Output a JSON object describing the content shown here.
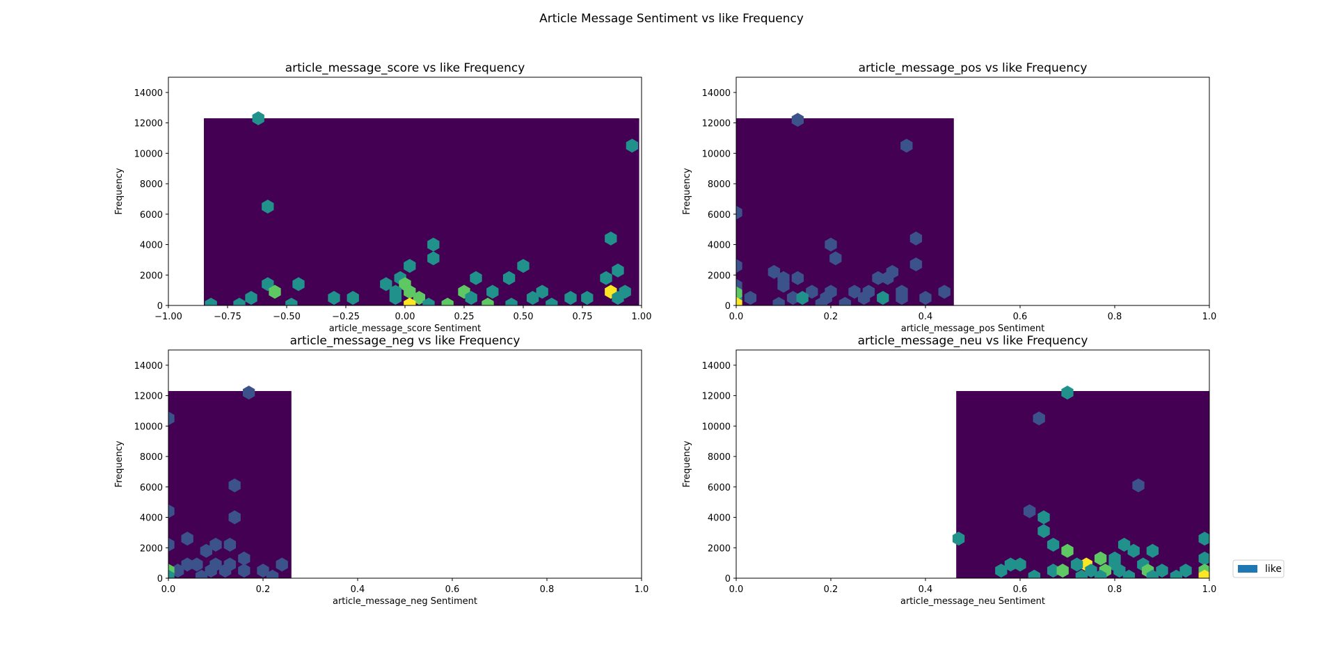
{
  "figure": {
    "suptitle": "Article Message Sentiment vs like Frequency",
    "legend": {
      "label": "like",
      "color": "#1f77b4",
      "placement": "center-right"
    }
  },
  "colormap": [
    "#440154",
    "#3b528b",
    "#21918c",
    "#5ec962",
    "#fde725"
  ],
  "chart_data": [
    {
      "type": "hexbin",
      "title": "article_message_score vs like Frequency",
      "xlabel": "article_message_score Sentiment",
      "ylabel": "Frequency",
      "xlim": [
        -1.0,
        1.0
      ],
      "ylim": [
        0,
        15000
      ],
      "xticks": [
        "−1.00",
        "−0.75",
        "−0.50",
        "−0.25",
        "0.00",
        "0.25",
        "0.50",
        "0.75",
        "1.00"
      ],
      "xtick_values": [
        -1.0,
        -0.75,
        -0.5,
        -0.25,
        0.0,
        0.25,
        0.5,
        0.75,
        1.0
      ],
      "yticks": [
        0,
        2000,
        4000,
        6000,
        8000,
        10000,
        12000,
        14000
      ],
      "data_extent": {
        "x": [
          -0.85,
          0.99
        ],
        "y": [
          0,
          12300
        ]
      },
      "hot_bins": [
        {
          "x": -0.62,
          "y": 12300,
          "level": 2
        },
        {
          "x": -0.58,
          "y": 6500,
          "level": 2
        },
        {
          "x": 0.12,
          "y": 4000,
          "level": 2
        },
        {
          "x": 0.12,
          "y": 3100,
          "level": 2
        },
        {
          "x": 0.87,
          "y": 4400,
          "level": 2
        },
        {
          "x": 0.96,
          "y": 10500,
          "level": 2
        },
        {
          "x": 0.9,
          "y": 2300,
          "level": 2
        },
        {
          "x": 0.5,
          "y": 2600,
          "level": 2
        },
        {
          "x": 0.3,
          "y": 1800,
          "level": 2
        },
        {
          "x": 0.44,
          "y": 1800,
          "level": 2
        },
        {
          "x": 0.02,
          "y": 2600,
          "level": 2
        },
        {
          "x": -0.58,
          "y": 1400,
          "level": 2
        },
        {
          "x": -0.45,
          "y": 1400,
          "level": 2
        },
        {
          "x": -0.55,
          "y": 900,
          "level": 3
        },
        {
          "x": -0.65,
          "y": 500,
          "level": 2
        },
        {
          "x": -0.3,
          "y": 500,
          "level": 2
        },
        {
          "x": -0.22,
          "y": 500,
          "level": 2
        },
        {
          "x": -0.08,
          "y": 1400,
          "level": 2
        },
        {
          "x": -0.02,
          "y": 1800,
          "level": 2
        },
        {
          "x": 0.0,
          "y": 1400,
          "level": 3
        },
        {
          "x": -0.04,
          "y": 900,
          "level": 2
        },
        {
          "x": 0.02,
          "y": 900,
          "level": 3
        },
        {
          "x": 0.06,
          "y": 500,
          "level": 3
        },
        {
          "x": -0.04,
          "y": 500,
          "level": 2
        },
        {
          "x": 0.25,
          "y": 900,
          "level": 3
        },
        {
          "x": 0.37,
          "y": 900,
          "level": 2
        },
        {
          "x": 0.58,
          "y": 900,
          "level": 2
        },
        {
          "x": 0.85,
          "y": 1800,
          "level": 2
        },
        {
          "x": 0.87,
          "y": 900,
          "level": 4
        },
        {
          "x": 0.93,
          "y": 900,
          "level": 2
        },
        {
          "x": 0.9,
          "y": 500,
          "level": 2
        },
        {
          "x": 0.7,
          "y": 500,
          "level": 2
        },
        {
          "x": 0.77,
          "y": 500,
          "level": 2
        },
        {
          "x": 0.54,
          "y": 500,
          "level": 2
        },
        {
          "x": 0.28,
          "y": 500,
          "level": 2
        },
        {
          "x": 0.02,
          "y": 50,
          "level": 4
        },
        {
          "x": 0.1,
          "y": 50,
          "level": 2
        },
        {
          "x": 0.18,
          "y": 50,
          "level": 3
        },
        {
          "x": 0.35,
          "y": 50,
          "level": 3
        },
        {
          "x": 0.45,
          "y": 50,
          "level": 2
        },
        {
          "x": -0.82,
          "y": 50,
          "level": 2
        },
        {
          "x": -0.48,
          "y": 50,
          "level": 2
        },
        {
          "x": -0.7,
          "y": 50,
          "level": 2
        },
        {
          "x": 0.62,
          "y": 50,
          "level": 2
        }
      ]
    },
    {
      "type": "hexbin",
      "title": "article_message_pos vs like Frequency",
      "xlabel": "article_message_pos Sentiment",
      "ylabel": "Frequency",
      "xlim": [
        0.0,
        1.0
      ],
      "ylim": [
        0,
        15000
      ],
      "xticks": [
        "0.0",
        "0.2",
        "0.4",
        "0.6",
        "0.8",
        "1.0"
      ],
      "xtick_values": [
        0.0,
        0.2,
        0.4,
        0.6,
        0.8,
        1.0
      ],
      "yticks": [
        0,
        2000,
        4000,
        6000,
        8000,
        10000,
        12000,
        14000
      ],
      "data_extent": {
        "x": [
          0.0,
          0.46
        ],
        "y": [
          0,
          12300
        ]
      },
      "hot_bins": [
        {
          "x": 0.13,
          "y": 12200,
          "level": 1
        },
        {
          "x": 0.36,
          "y": 10500,
          "level": 1
        },
        {
          "x": 0.0,
          "y": 6100,
          "level": 1
        },
        {
          "x": 0.2,
          "y": 4000,
          "level": 1
        },
        {
          "x": 0.38,
          "y": 4400,
          "level": 1
        },
        {
          "x": 0.21,
          "y": 3100,
          "level": 1
        },
        {
          "x": 0.38,
          "y": 2700,
          "level": 1
        },
        {
          "x": 0.33,
          "y": 2200,
          "level": 1
        },
        {
          "x": 0.0,
          "y": 2600,
          "level": 1
        },
        {
          "x": 0.08,
          "y": 2200,
          "level": 1
        },
        {
          "x": 0.1,
          "y": 1800,
          "level": 1
        },
        {
          "x": 0.13,
          "y": 1800,
          "level": 1
        },
        {
          "x": 0.3,
          "y": 1800,
          "level": 1
        },
        {
          "x": 0.32,
          "y": 1800,
          "level": 1
        },
        {
          "x": 0.0,
          "y": 1300,
          "level": 1
        },
        {
          "x": 0.1,
          "y": 1300,
          "level": 1
        },
        {
          "x": 0.44,
          "y": 900,
          "level": 1
        },
        {
          "x": 0.16,
          "y": 900,
          "level": 1
        },
        {
          "x": 0.2,
          "y": 900,
          "level": 1
        },
        {
          "x": 0.25,
          "y": 900,
          "level": 1
        },
        {
          "x": 0.28,
          "y": 900,
          "level": 1
        },
        {
          "x": 0.35,
          "y": 900,
          "level": 1
        },
        {
          "x": 0.03,
          "y": 500,
          "level": 1
        },
        {
          "x": 0.12,
          "y": 500,
          "level": 1
        },
        {
          "x": 0.14,
          "y": 500,
          "level": 2
        },
        {
          "x": 0.19,
          "y": 500,
          "level": 1
        },
        {
          "x": 0.27,
          "y": 500,
          "level": 1
        },
        {
          "x": 0.31,
          "y": 500,
          "level": 2
        },
        {
          "x": 0.35,
          "y": 500,
          "level": 1
        },
        {
          "x": 0.4,
          "y": 500,
          "level": 1
        },
        {
          "x": 0.0,
          "y": 500,
          "level": 2
        },
        {
          "x": 0.0,
          "y": 800,
          "level": 3
        },
        {
          "x": 0.0,
          "y": 100,
          "level": 4
        },
        {
          "x": 0.09,
          "y": 100,
          "level": 1
        },
        {
          "x": 0.18,
          "y": 100,
          "level": 1
        },
        {
          "x": 0.23,
          "y": 100,
          "level": 1
        }
      ]
    },
    {
      "type": "hexbin",
      "title": "article_message_neg vs like Frequency",
      "xlabel": "article_message_neg Sentiment",
      "ylabel": "Frequency",
      "xlim": [
        0.0,
        1.0
      ],
      "ylim": [
        0,
        15000
      ],
      "xticks": [
        "0.0",
        "0.2",
        "0.4",
        "0.6",
        "0.8",
        "1.0"
      ],
      "xtick_values": [
        0.0,
        0.2,
        0.4,
        0.6,
        0.8,
        1.0
      ],
      "yticks": [
        0,
        2000,
        4000,
        6000,
        8000,
        10000,
        12000,
        14000
      ],
      "data_extent": {
        "x": [
          0.0,
          0.26
        ],
        "y": [
          0,
          12300
        ]
      },
      "hot_bins": [
        {
          "x": 0.17,
          "y": 12200,
          "level": 1
        },
        {
          "x": 0.0,
          "y": 10500,
          "level": 1
        },
        {
          "x": 0.14,
          "y": 6100,
          "level": 1
        },
        {
          "x": 0.0,
          "y": 4400,
          "level": 1
        },
        {
          "x": 0.14,
          "y": 4000,
          "level": 1
        },
        {
          "x": 0.04,
          "y": 2600,
          "level": 1
        },
        {
          "x": 0.1,
          "y": 2200,
          "level": 1
        },
        {
          "x": 0.13,
          "y": 2200,
          "level": 1
        },
        {
          "x": 0.0,
          "y": 2200,
          "level": 1
        },
        {
          "x": 0.08,
          "y": 1800,
          "level": 1
        },
        {
          "x": 0.16,
          "y": 1300,
          "level": 1
        },
        {
          "x": 0.24,
          "y": 900,
          "level": 1
        },
        {
          "x": 0.04,
          "y": 900,
          "level": 1
        },
        {
          "x": 0.06,
          "y": 900,
          "level": 1
        },
        {
          "x": 0.1,
          "y": 900,
          "level": 1
        },
        {
          "x": 0.13,
          "y": 900,
          "level": 1
        },
        {
          "x": 0.02,
          "y": 500,
          "level": 1
        },
        {
          "x": 0.09,
          "y": 500,
          "level": 1
        },
        {
          "x": 0.12,
          "y": 500,
          "level": 1
        },
        {
          "x": 0.16,
          "y": 500,
          "level": 1
        },
        {
          "x": 0.2,
          "y": 500,
          "level": 1
        },
        {
          "x": 0.0,
          "y": 500,
          "level": 3
        },
        {
          "x": 0.0,
          "y": 100,
          "level": 2
        },
        {
          "x": 0.22,
          "y": 100,
          "level": 1
        },
        {
          "x": 0.07,
          "y": 100,
          "level": 1
        }
      ]
    },
    {
      "type": "hexbin",
      "title": "article_message_neu vs like Frequency",
      "xlabel": "article_message_neu Sentiment",
      "ylabel": "Frequency",
      "xlim": [
        0.0,
        1.0
      ],
      "ylim": [
        0,
        15000
      ],
      "xticks": [
        "0.0",
        "0.2",
        "0.4",
        "0.6",
        "0.8",
        "1.0"
      ],
      "xtick_values": [
        0.0,
        0.2,
        0.4,
        0.6,
        0.8,
        1.0
      ],
      "yticks": [
        0,
        2000,
        4000,
        6000,
        8000,
        10000,
        12000,
        14000
      ],
      "data_extent": {
        "x": [
          0.465,
          1.0
        ],
        "y": [
          0,
          12300
        ]
      },
      "hot_bins": [
        {
          "x": 0.7,
          "y": 12200,
          "level": 2
        },
        {
          "x": 0.64,
          "y": 10500,
          "level": 1
        },
        {
          "x": 0.85,
          "y": 6100,
          "level": 1
        },
        {
          "x": 0.62,
          "y": 4400,
          "level": 1
        },
        {
          "x": 0.65,
          "y": 4000,
          "level": 2
        },
        {
          "x": 0.65,
          "y": 3100,
          "level": 2
        },
        {
          "x": 0.47,
          "y": 2600,
          "level": 2
        },
        {
          "x": 0.99,
          "y": 2600,
          "level": 2
        },
        {
          "x": 0.67,
          "y": 2200,
          "level": 2
        },
        {
          "x": 0.82,
          "y": 2200,
          "level": 2
        },
        {
          "x": 0.7,
          "y": 1800,
          "level": 3
        },
        {
          "x": 0.84,
          "y": 1800,
          "level": 2
        },
        {
          "x": 0.88,
          "y": 1800,
          "level": 2
        },
        {
          "x": 0.77,
          "y": 1300,
          "level": 3
        },
        {
          "x": 0.8,
          "y": 1300,
          "level": 2
        },
        {
          "x": 0.99,
          "y": 1300,
          "level": 2
        },
        {
          "x": 0.74,
          "y": 900,
          "level": 4
        },
        {
          "x": 0.72,
          "y": 900,
          "level": 2
        },
        {
          "x": 0.8,
          "y": 900,
          "level": 2
        },
        {
          "x": 0.86,
          "y": 900,
          "level": 2
        },
        {
          "x": 0.58,
          "y": 900,
          "level": 2
        },
        {
          "x": 0.6,
          "y": 900,
          "level": 2
        },
        {
          "x": 0.56,
          "y": 500,
          "level": 2
        },
        {
          "x": 0.67,
          "y": 500,
          "level": 2
        },
        {
          "x": 0.69,
          "y": 500,
          "level": 3
        },
        {
          "x": 0.75,
          "y": 500,
          "level": 2
        },
        {
          "x": 0.78,
          "y": 500,
          "level": 3
        },
        {
          "x": 0.81,
          "y": 500,
          "level": 2
        },
        {
          "x": 0.87,
          "y": 500,
          "level": 3
        },
        {
          "x": 0.9,
          "y": 500,
          "level": 2
        },
        {
          "x": 0.95,
          "y": 500,
          "level": 2
        },
        {
          "x": 0.99,
          "y": 500,
          "level": 3
        },
        {
          "x": 0.63,
          "y": 100,
          "level": 2
        },
        {
          "x": 0.73,
          "y": 100,
          "level": 2
        },
        {
          "x": 0.77,
          "y": 100,
          "level": 2
        },
        {
          "x": 0.83,
          "y": 100,
          "level": 2
        },
        {
          "x": 0.88,
          "y": 100,
          "level": 2
        },
        {
          "x": 0.93,
          "y": 100,
          "level": 2
        },
        {
          "x": 0.99,
          "y": 100,
          "level": 4
        }
      ]
    }
  ]
}
